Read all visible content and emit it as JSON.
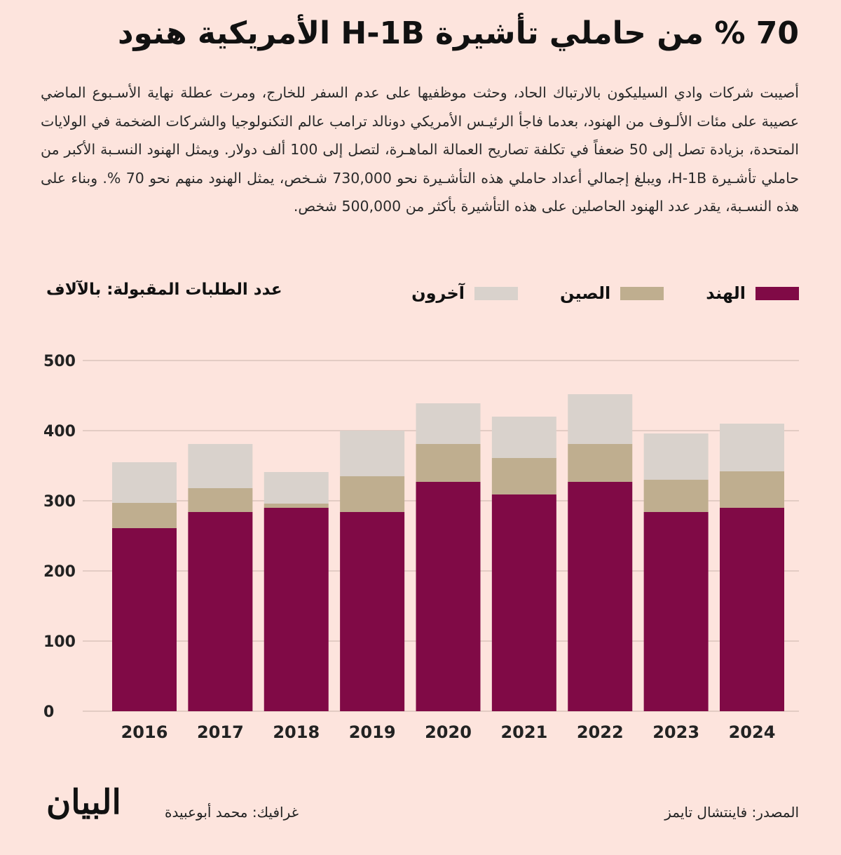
{
  "headline": "70 % من حاملي تأشيرة H-1B الأمريكية هنود",
  "paragraph": "أصيبت شركات وادي السيليكون بالارتباك الحاد، وحثت موظفيها على عدم السفر للخارج، ومرت عطلة نهاية الأسـبوع الماضي عصيبة على مئات الألـوف من الهنود، بعدما فاجأ الرئيـس الأمريكي دونالد ترامب عالم التكنولوجيا والشركات الضخمة في الولايات المتحدة، بزيادة تصل إلى 50 ضعفاً في تكلفة تصاريح العمالة الماهـرة، لتصل إلى 100 ألف دولار. ويمثل الهنود النسـبة الأكبر من حاملي تأشـيرة H-1B، ويبلغ إجمالي أعداد حاملي هذه التأشـيرة نحو 730,000 شـخص، يمثل الهنود منهم نحو 70 %. وبناء على هذه النسـبة، يقدر عدد الهنود الحاصلين على هذه التأشيرة بأكثر من 500,000 شخص.",
  "legend": [
    {
      "label": "الهند",
      "color": "#800a46"
    },
    {
      "label": "الصين",
      "color": "#bfae8f"
    },
    {
      "label": "آخرون",
      "color": "#d9d2cc"
    }
  ],
  "y_axis_title": "عدد الطلبات المقبولة: بالآلاف",
  "footer": {
    "source": "المصدر: فاينتشال تايمز",
    "credit": "غرافيك: محمد أبوعبيدة",
    "logo": "البيان"
  },
  "chart_data": {
    "type": "bar",
    "stacked": true,
    "categories": [
      "2016",
      "2017",
      "2018",
      "2019",
      "2020",
      "2021",
      "2022",
      "2023",
      "2024"
    ],
    "series": [
      {
        "name": "الهند",
        "color": "#800a46",
        "values": [
          261,
          284,
          290,
          284,
          327,
          309,
          327,
          284,
          290
        ]
      },
      {
        "name": "الصين",
        "color": "#bfae8f",
        "values": [
          36,
          34,
          6,
          51,
          54,
          52,
          54,
          46,
          52
        ]
      },
      {
        "name": "آخرون",
        "color": "#d9d2cc",
        "values": [
          58,
          63,
          45,
          65,
          58,
          59,
          71,
          66,
          68
        ]
      }
    ],
    "yticks": [
      0,
      100,
      200,
      300,
      400,
      500
    ],
    "ylim": [
      0,
      500
    ],
    "ylabel": "عدد الطلبات المقبولة: بالآلاف",
    "grid": true,
    "legend_position": "top"
  }
}
